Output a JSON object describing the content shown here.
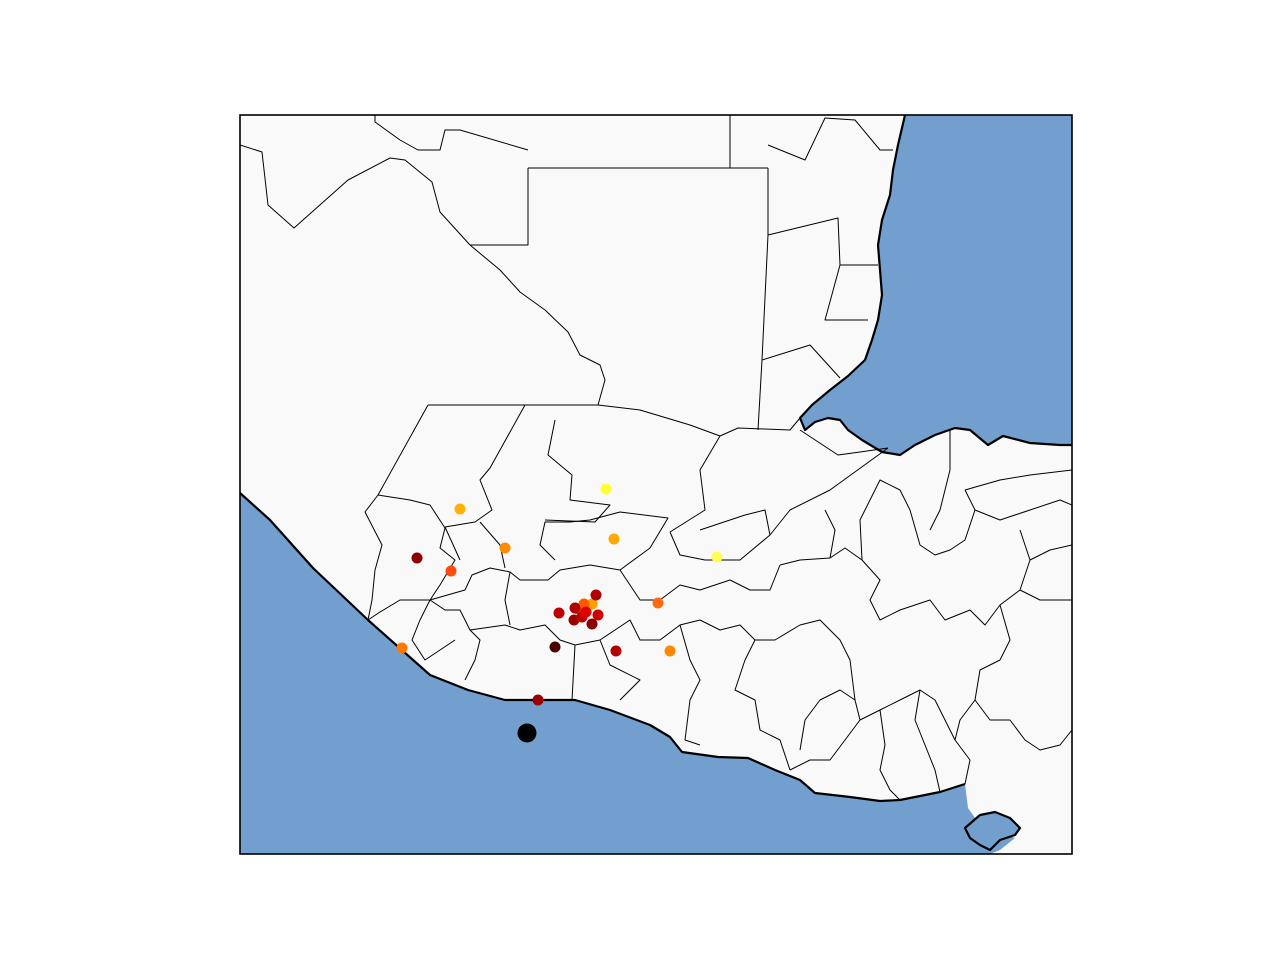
{
  "map": {
    "sea_color": "#739fcf",
    "land_color": "#f9f9f9",
    "border_color": "#000000",
    "point_colormap": "hot"
  },
  "points": [
    {
      "id": "p1",
      "color": "#ffff33"
    },
    {
      "id": "p2",
      "color": "#ffff55"
    },
    {
      "id": "p3",
      "color": "#ffb000"
    },
    {
      "id": "p4",
      "color": "#ffaa00"
    },
    {
      "id": "p5",
      "color": "#ff8c00"
    },
    {
      "id": "p6",
      "color": "#ff4a10"
    },
    {
      "id": "p7",
      "color": "#8b0000"
    },
    {
      "id": "p8",
      "color": "#ff6a10"
    },
    {
      "id": "p9",
      "color": "#ff8800"
    },
    {
      "id": "p10",
      "color": "#ff7800"
    },
    {
      "id": "p11",
      "color": "#c00000"
    },
    {
      "id": "p12",
      "color": "#ff3a00"
    },
    {
      "id": "p13",
      "color": "#ffa000"
    },
    {
      "id": "p14",
      "color": "#ff5a00"
    },
    {
      "id": "p15",
      "color": "#b00000"
    },
    {
      "id": "p16",
      "color": "#cc0000"
    },
    {
      "id": "p17",
      "color": "#8b0000"
    },
    {
      "id": "p18",
      "color": "#990000"
    },
    {
      "id": "p19",
      "color": "#c00000"
    },
    {
      "id": "p20",
      "color": "#e00000"
    },
    {
      "id": "p21",
      "color": "#b00000"
    },
    {
      "id": "p22",
      "color": "#4a0000"
    },
    {
      "id": "p23",
      "color": "#b30000"
    },
    {
      "id": "p24",
      "color": "#9a0000"
    },
    {
      "id": "p25",
      "color": "#000000"
    }
  ]
}
